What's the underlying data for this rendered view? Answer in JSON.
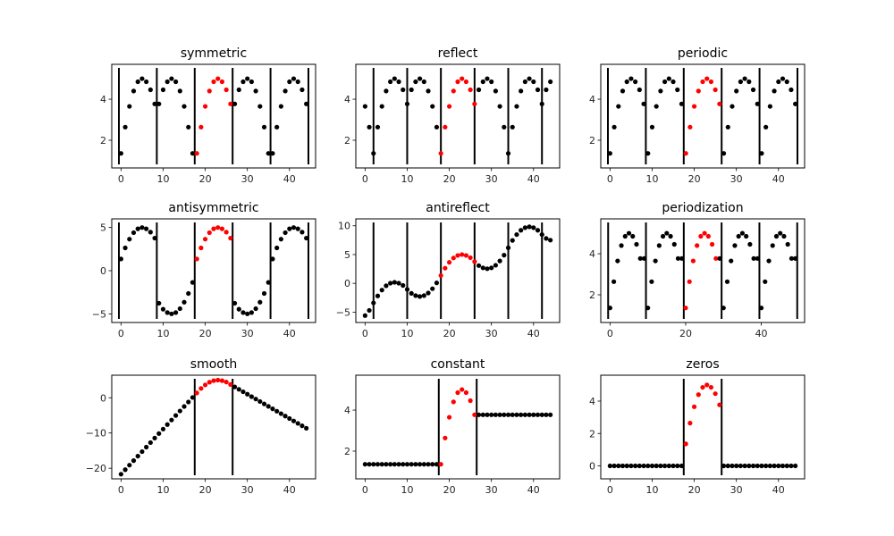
{
  "signal": [
    1.36,
    2.64,
    3.65,
    4.4,
    4.85,
    5.0,
    4.85,
    4.46,
    3.77
  ],
  "colors": {
    "signal": "#ff0000",
    "extension": "#000000",
    "boundary": "#000000"
  },
  "chart_data": [
    {
      "type": "scatter",
      "title": "symmetric",
      "x": [
        0,
        1,
        2,
        3,
        4,
        5,
        6,
        7,
        8,
        9,
        10,
        11,
        12,
        13,
        14,
        15,
        16,
        17,
        18,
        19,
        20,
        21,
        22,
        23,
        24,
        25,
        26,
        27,
        28,
        29,
        30,
        31,
        32,
        33,
        34,
        35,
        36,
        37,
        38,
        39,
        40,
        41,
        42,
        43,
        44
      ],
      "y": [
        1.36,
        2.64,
        3.65,
        4.4,
        4.85,
        5.0,
        4.85,
        4.46,
        3.77,
        3.77,
        4.46,
        4.85,
        5.0,
        4.85,
        4.4,
        3.65,
        2.64,
        1.36,
        1.36,
        2.64,
        3.65,
        4.4,
        4.85,
        5.0,
        4.85,
        4.46,
        3.77,
        3.77,
        4.46,
        4.85,
        5.0,
        4.85,
        4.4,
        3.65,
        2.64,
        1.36,
        1.36,
        2.64,
        3.65,
        4.4,
        4.85,
        5.0,
        4.85,
        4.46,
        3.77
      ],
      "signal_range": [
        18,
        26
      ],
      "boundaries": [
        -0.5,
        8.5,
        17.5,
        26.5,
        35.5,
        44.5
      ],
      "xlim": [
        -2.2,
        46.2
      ],
      "ylim": [
        0.65,
        5.7
      ],
      "xticks": [
        0,
        10,
        20,
        30,
        40
      ],
      "yticks": [
        2,
        4
      ]
    },
    {
      "type": "scatter",
      "title": "reflect",
      "x": [
        0,
        1,
        2,
        3,
        4,
        5,
        6,
        7,
        8,
        9,
        10,
        11,
        12,
        13,
        14,
        15,
        16,
        17,
        18,
        19,
        20,
        21,
        22,
        23,
        24,
        25,
        26,
        27,
        28,
        29,
        30,
        31,
        32,
        33,
        34,
        35,
        36,
        37,
        38,
        39,
        40,
        41,
        42,
        43,
        44
      ],
      "y": [
        3.65,
        2.64,
        1.36,
        2.64,
        3.65,
        4.4,
        4.85,
        5.0,
        4.85,
        4.46,
        3.77,
        4.46,
        4.85,
        5.0,
        4.85,
        4.4,
        3.65,
        2.64,
        1.36,
        2.64,
        3.65,
        4.4,
        4.85,
        5.0,
        4.85,
        4.46,
        3.77,
        4.46,
        4.85,
        5.0,
        4.85,
        4.4,
        3.65,
        2.64,
        1.36,
        2.64,
        3.65,
        4.4,
        4.85,
        5.0,
        4.85,
        4.46,
        3.77,
        4.46,
        4.85
      ],
      "signal_range": [
        18,
        26
      ],
      "boundaries": [
        2,
        10,
        18,
        26,
        34,
        42
      ],
      "xlim": [
        -2.2,
        46.2
      ],
      "ylim": [
        0.65,
        5.7
      ],
      "xticks": [
        0,
        10,
        20,
        30,
        40
      ],
      "yticks": [
        2,
        4
      ]
    },
    {
      "type": "scatter",
      "title": "periodic",
      "x": [
        0,
        1,
        2,
        3,
        4,
        5,
        6,
        7,
        8,
        9,
        10,
        11,
        12,
        13,
        14,
        15,
        16,
        17,
        18,
        19,
        20,
        21,
        22,
        23,
        24,
        25,
        26,
        27,
        28,
        29,
        30,
        31,
        32,
        33,
        34,
        35,
        36,
        37,
        38,
        39,
        40,
        41,
        42,
        43,
        44
      ],
      "y": [
        1.36,
        2.64,
        3.65,
        4.4,
        4.85,
        5.0,
        4.85,
        4.46,
        3.77,
        1.36,
        2.64,
        3.65,
        4.4,
        4.85,
        5.0,
        4.85,
        4.46,
        3.77,
        1.36,
        2.64,
        3.65,
        4.4,
        4.85,
        5.0,
        4.85,
        4.46,
        3.77,
        1.36,
        2.64,
        3.65,
        4.4,
        4.85,
        5.0,
        4.85,
        4.46,
        3.77,
        1.36,
        2.64,
        3.65,
        4.4,
        4.85,
        5.0,
        4.85,
        4.46,
        3.77
      ],
      "signal_range": [
        18,
        26
      ],
      "boundaries": [
        -0.5,
        8.5,
        17.5,
        26.5,
        35.5,
        44.5
      ],
      "xlim": [
        -2.2,
        46.2
      ],
      "ylim": [
        0.65,
        5.7
      ],
      "xticks": [
        0,
        10,
        20,
        30,
        40
      ],
      "yticks": [
        2,
        4
      ]
    },
    {
      "type": "scatter",
      "title": "antisymmetric",
      "x": [
        0,
        1,
        2,
        3,
        4,
        5,
        6,
        7,
        8,
        9,
        10,
        11,
        12,
        13,
        14,
        15,
        16,
        17,
        18,
        19,
        20,
        21,
        22,
        23,
        24,
        25,
        26,
        27,
        28,
        29,
        30,
        31,
        32,
        33,
        34,
        35,
        36,
        37,
        38,
        39,
        40,
        41,
        42,
        43,
        44
      ],
      "y": [
        1.36,
        2.64,
        3.65,
        4.4,
        4.85,
        5.0,
        4.85,
        4.46,
        3.77,
        -3.77,
        -4.46,
        -4.85,
        -5.0,
        -4.85,
        -4.4,
        -3.65,
        -2.64,
        -1.36,
        1.36,
        2.64,
        3.65,
        4.4,
        4.85,
        5.0,
        4.85,
        4.46,
        3.77,
        -3.77,
        -4.46,
        -4.85,
        -5.0,
        -4.85,
        -4.4,
        -3.65,
        -2.64,
        -1.36,
        1.36,
        2.64,
        3.65,
        4.4,
        4.85,
        5.0,
        4.85,
        4.46,
        3.77
      ],
      "signal_range": [
        18,
        26
      ],
      "boundaries": [
        -0.5,
        8.5,
        17.5,
        26.5,
        35.5,
        44.5
      ],
      "xlim": [
        -2.2,
        46.2
      ],
      "ylim": [
        -6.0,
        6.0
      ],
      "xticks": [
        0,
        10,
        20,
        30,
        40
      ],
      "yticks": [
        -5,
        0,
        5
      ]
    },
    {
      "type": "scatter",
      "title": "antireflect",
      "x": [
        0,
        1,
        2,
        3,
        4,
        5,
        6,
        7,
        8,
        9,
        10,
        11,
        12,
        13,
        14,
        15,
        16,
        17,
        18,
        19,
        20,
        21,
        22,
        23,
        24,
        25,
        26,
        27,
        28,
        29,
        30,
        31,
        32,
        33,
        34,
        35,
        36,
        37,
        38,
        39,
        40,
        41,
        42,
        43,
        44
      ],
      "y": [
        -5.6,
        -4.7,
        -3.4,
        -2.18,
        -1.17,
        -0.42,
        0.03,
        0.18,
        0.03,
        -0.36,
        -1.05,
        -1.74,
        -2.13,
        -2.28,
        -2.13,
        -1.68,
        -0.93,
        0.08,
        1.36,
        2.64,
        3.65,
        4.4,
        4.85,
        5.0,
        4.85,
        4.46,
        3.77,
        3.08,
        2.69,
        2.54,
        2.69,
        3.14,
        3.89,
        4.9,
        6.18,
        7.46,
        8.47,
        9.22,
        9.67,
        9.82,
        9.67,
        9.22,
        8.47,
        7.8,
        7.5
      ],
      "signal_range": [
        18,
        26
      ],
      "boundaries": [
        2,
        10,
        18,
        26,
        34,
        42
      ],
      "xlim": [
        -2.2,
        46.2
      ],
      "ylim": [
        -6.8,
        11.2
      ],
      "xticks": [
        0,
        10,
        20,
        30,
        40
      ],
      "yticks": [
        -5,
        0,
        5,
        10
      ]
    },
    {
      "type": "scatter",
      "title": "periodization",
      "x": [
        0,
        1,
        2,
        3,
        4,
        5,
        6,
        7,
        8,
        9,
        10,
        11,
        12,
        13,
        14,
        15,
        16,
        17,
        18,
        19,
        20,
        21,
        22,
        23,
        24,
        25,
        26,
        27,
        28,
        29,
        30,
        31,
        32,
        33,
        34,
        35,
        36,
        37,
        38,
        39,
        40,
        41,
        42,
        43,
        44,
        45,
        46,
        47,
        48,
        49
      ],
      "y": [
        1.36,
        2.64,
        3.65,
        4.4,
        4.85,
        5.0,
        4.85,
        4.46,
        3.77,
        3.77,
        1.36,
        2.64,
        3.65,
        4.4,
        4.85,
        5.0,
        4.85,
        4.46,
        3.77,
        3.77,
        1.36,
        2.64,
        3.65,
        4.4,
        4.85,
        5.0,
        4.85,
        4.46,
        3.77,
        3.77,
        1.36,
        2.64,
        3.65,
        4.4,
        4.85,
        5.0,
        4.85,
        4.46,
        3.77,
        3.77,
        1.36,
        2.64,
        3.65,
        4.4,
        4.85,
        5.0,
        4.85,
        4.46,
        3.77,
        3.77
      ],
      "signal_range": [
        20,
        28
      ],
      "boundaries": [
        -0.5,
        9.5,
        19.5,
        29.5,
        39.5,
        49.5
      ],
      "xlim": [
        -2.45,
        51.45
      ],
      "ylim": [
        0.65,
        5.7
      ],
      "xticks": [
        0,
        20,
        40
      ],
      "yticks": [
        2,
        4
      ]
    },
    {
      "type": "scatter",
      "title": "smooth",
      "x": [
        0,
        1,
        2,
        3,
        4,
        5,
        6,
        7,
        8,
        9,
        10,
        11,
        12,
        13,
        14,
        15,
        16,
        17,
        18,
        19,
        20,
        21,
        22,
        23,
        24,
        25,
        26,
        27,
        28,
        29,
        30,
        31,
        32,
        33,
        34,
        35,
        36,
        37,
        38,
        39,
        40,
        41,
        42,
        43,
        44
      ],
      "y": [
        -21.68,
        -20.4,
        -19.12,
        -17.84,
        -16.56,
        -15.28,
        -14.0,
        -12.72,
        -11.44,
        -10.16,
        -8.88,
        -7.6,
        -6.32,
        -5.04,
        -3.76,
        -2.48,
        -1.2,
        0.08,
        1.36,
        2.64,
        3.65,
        4.4,
        4.85,
        5.0,
        4.85,
        4.46,
        3.77,
        3.08,
        2.39,
        1.7,
        1.01,
        0.32,
        -0.37,
        -1.06,
        -1.75,
        -2.44,
        -3.13,
        -3.82,
        -4.51,
        -5.2,
        -5.89,
        -6.58,
        -7.27,
        -7.96,
        -8.65
      ],
      "signal_range": [
        18,
        26
      ],
      "boundaries": [
        17.5,
        26.5
      ],
      "xlim": [
        -2.2,
        46.2
      ],
      "ylim": [
        -23.0,
        6.4
      ],
      "xticks": [
        0,
        10,
        20,
        30,
        40
      ],
      "yticks": [
        -20,
        -10,
        0
      ]
    },
    {
      "type": "scatter",
      "title": "constant",
      "x": [
        0,
        1,
        2,
        3,
        4,
        5,
        6,
        7,
        8,
        9,
        10,
        11,
        12,
        13,
        14,
        15,
        16,
        17,
        18,
        19,
        20,
        21,
        22,
        23,
        24,
        25,
        26,
        27,
        28,
        29,
        30,
        31,
        32,
        33,
        34,
        35,
        36,
        37,
        38,
        39,
        40,
        41,
        42,
        43,
        44
      ],
      "y": [
        1.36,
        1.36,
        1.36,
        1.36,
        1.36,
        1.36,
        1.36,
        1.36,
        1.36,
        1.36,
        1.36,
        1.36,
        1.36,
        1.36,
        1.36,
        1.36,
        1.36,
        1.36,
        1.36,
        2.64,
        3.65,
        4.4,
        4.85,
        5.0,
        4.85,
        4.46,
        3.77,
        3.77,
        3.77,
        3.77,
        3.77,
        3.77,
        3.77,
        3.77,
        3.77,
        3.77,
        3.77,
        3.77,
        3.77,
        3.77,
        3.77,
        3.77,
        3.77,
        3.77,
        3.77
      ],
      "signal_range": [
        18,
        26
      ],
      "boundaries": [
        17.5,
        26.5
      ],
      "xlim": [
        -2.2,
        46.2
      ],
      "ylim": [
        0.65,
        5.7
      ],
      "xticks": [
        0,
        10,
        20,
        30,
        40
      ],
      "yticks": [
        2,
        4
      ]
    },
    {
      "type": "scatter",
      "title": "zeros",
      "x": [
        0,
        1,
        2,
        3,
        4,
        5,
        6,
        7,
        8,
        9,
        10,
        11,
        12,
        13,
        14,
        15,
        16,
        17,
        18,
        19,
        20,
        21,
        22,
        23,
        24,
        25,
        26,
        27,
        28,
        29,
        30,
        31,
        32,
        33,
        34,
        35,
        36,
        37,
        38,
        39,
        40,
        41,
        42,
        43,
        44
      ],
      "y": [
        0,
        0,
        0,
        0,
        0,
        0,
        0,
        0,
        0,
        0,
        0,
        0,
        0,
        0,
        0,
        0,
        0,
        0,
        1.36,
        2.64,
        3.65,
        4.4,
        4.85,
        5.0,
        4.85,
        4.46,
        3.77,
        0,
        0,
        0,
        0,
        0,
        0,
        0,
        0,
        0,
        0,
        0,
        0,
        0,
        0,
        0,
        0,
        0,
        0
      ],
      "signal_range": [
        18,
        26
      ],
      "boundaries": [
        17.5,
        26.5
      ],
      "xlim": [
        -2.2,
        46.2
      ],
      "ylim": [
        -0.8,
        5.6
      ],
      "xticks": [
        0,
        10,
        20,
        30,
        40
      ],
      "yticks": [
        0,
        2,
        4
      ]
    }
  ]
}
